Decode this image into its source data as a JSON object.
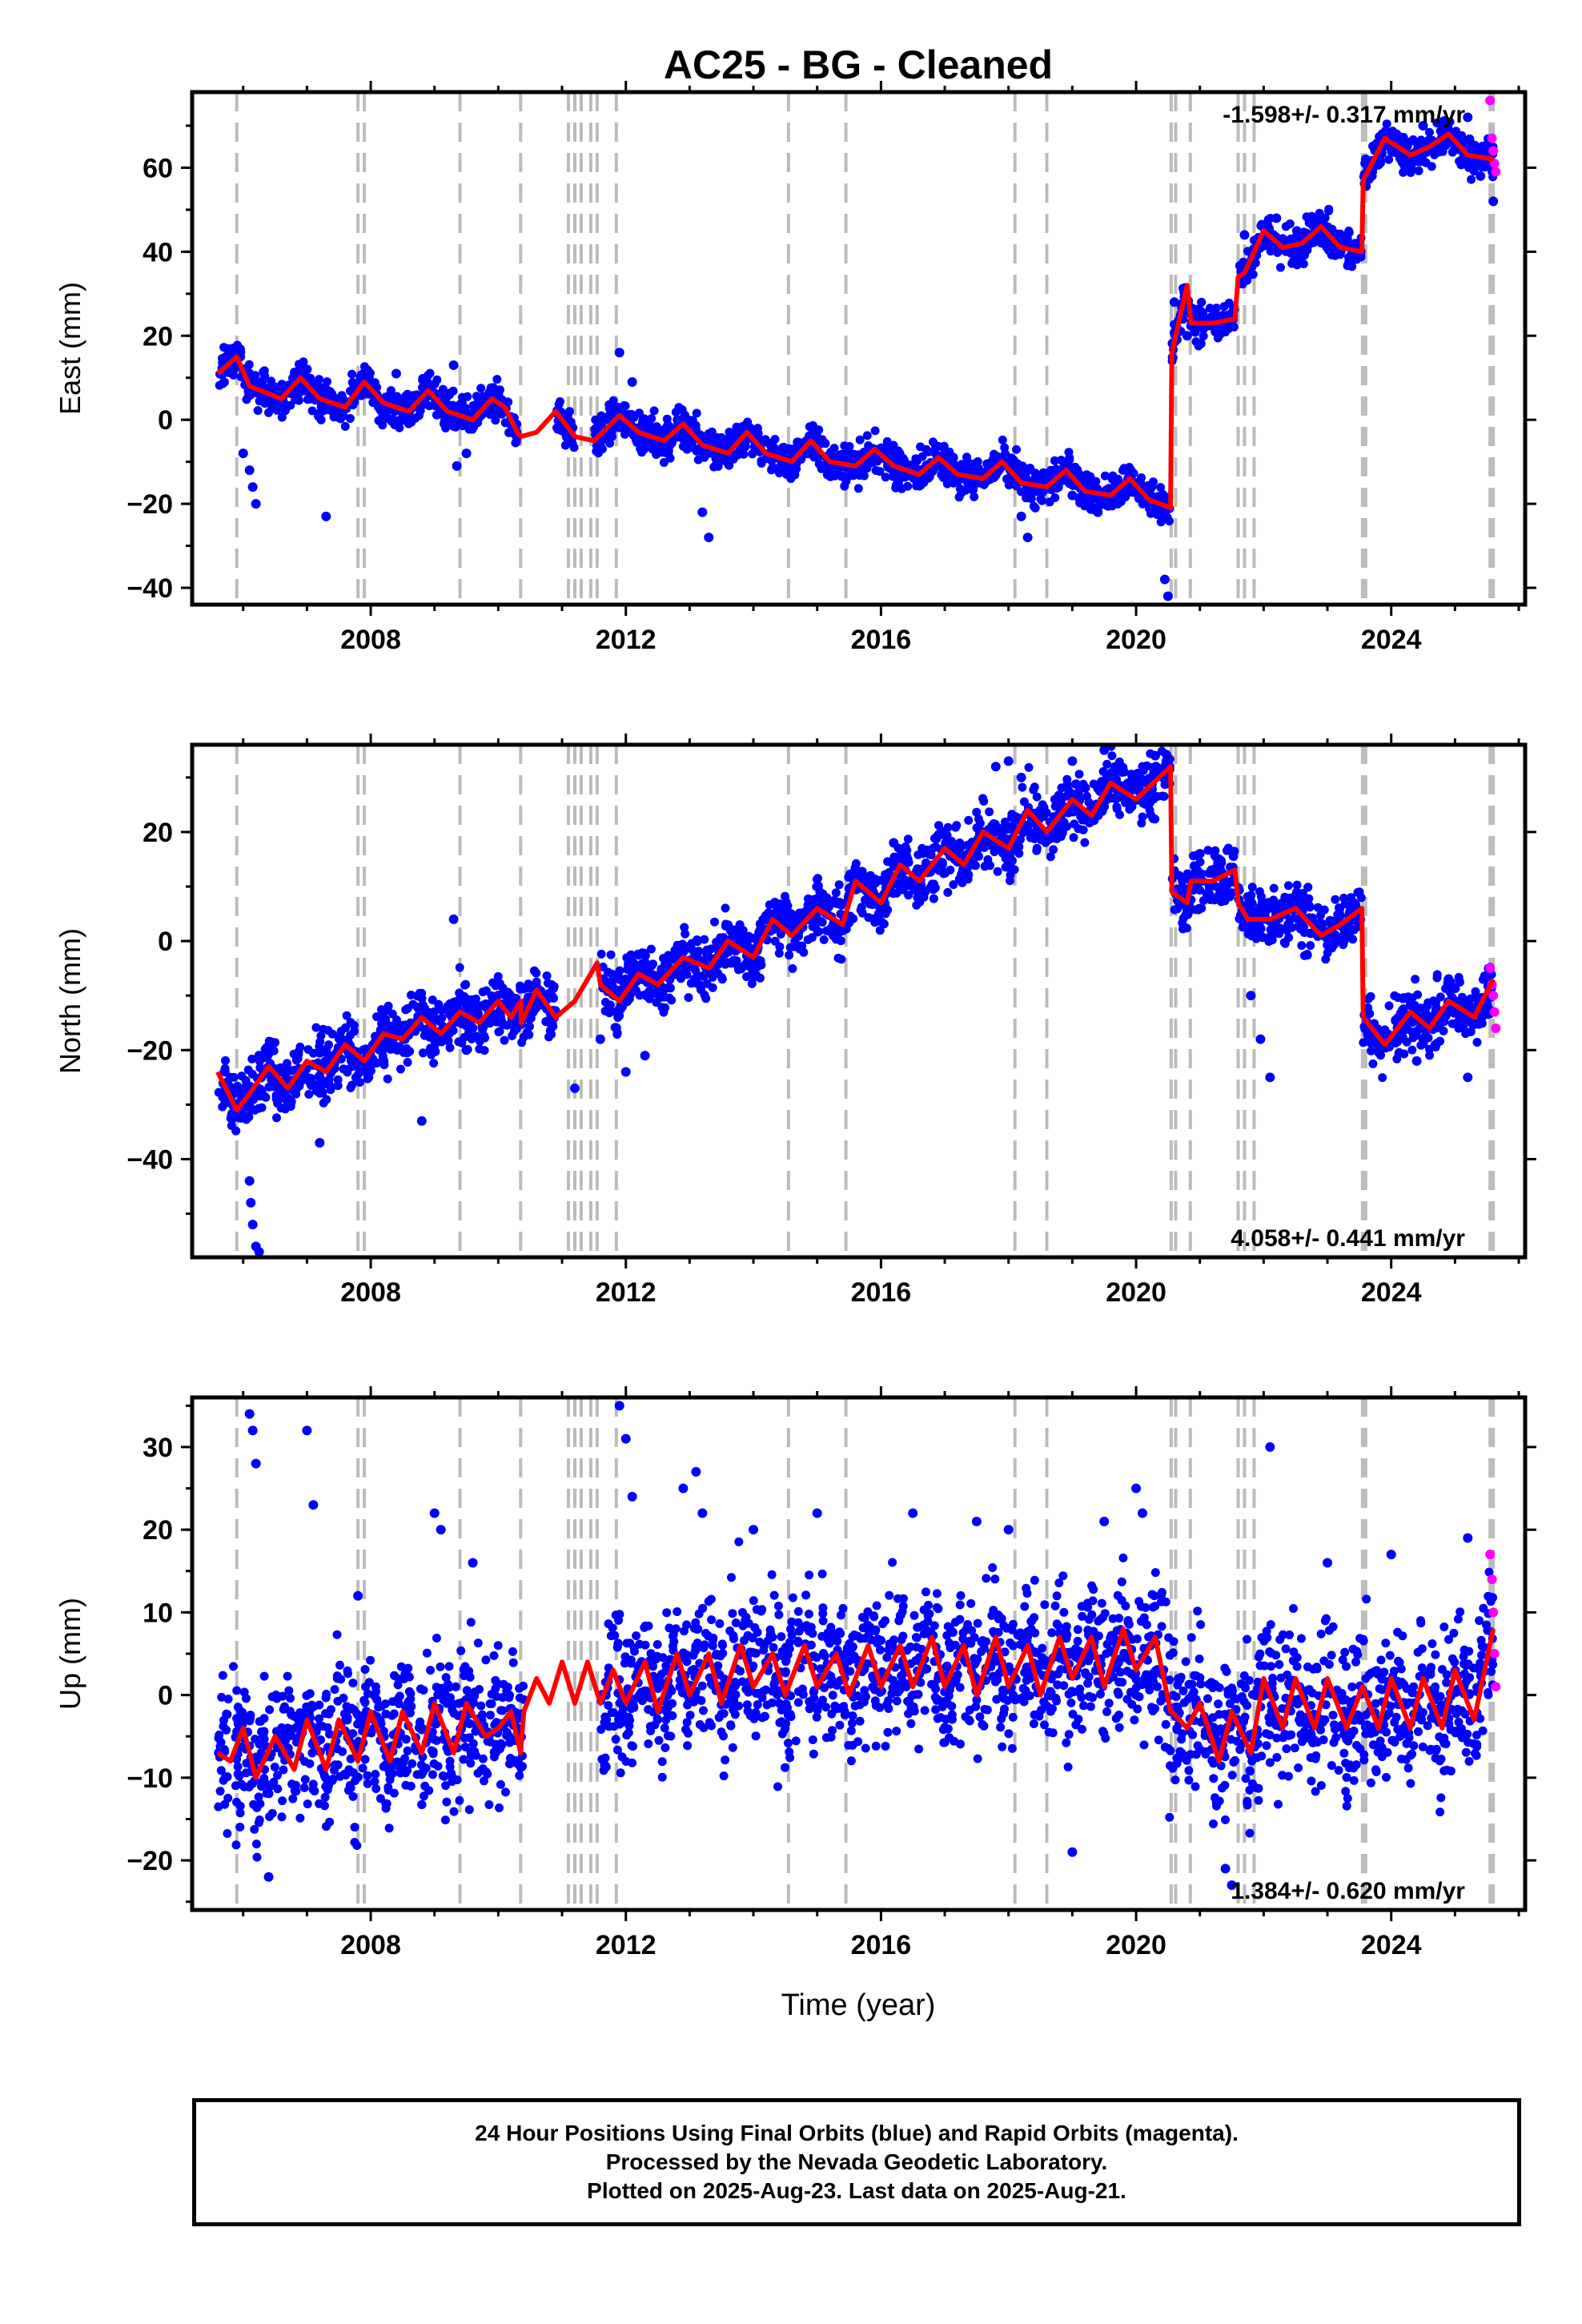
{
  "chart_data": {
    "type": "scatter",
    "title": "AC25  - BG - Cleaned",
    "xlabel": "Time (year)",
    "x_ticks": [
      "2008",
      "2012",
      "2016",
      "2020",
      "2024"
    ],
    "xlim": [
      2005.2,
      2026.1
    ],
    "vertical_dashed_lines_at_years": [
      2005.9,
      2007.8,
      2007.9,
      2009.4,
      2010.35,
      2011.1,
      2011.2,
      2011.3,
      2011.45,
      2011.55,
      2011.85,
      2014.55,
      2015.45,
      2018.1,
      2018.6,
      2020.55,
      2020.62,
      2020.85,
      2021.6,
      2021.7,
      2021.85,
      2023.55,
      2023.6,
      2025.55,
      2025.6
    ],
    "colors": {
      "final_orbits": "#0000ff",
      "rapid_orbits": "#ff00ff",
      "model_fit": "#ff0000",
      "event_lines": "#bbbbbb"
    },
    "panels": [
      {
        "ylabel": "East (mm)",
        "ylim": [
          -44,
          78
        ],
        "y_ticks": [
          "-40",
          "-20",
          "0",
          "20",
          "40",
          "60"
        ],
        "rate_label": "-1.598+/- 0.317 mm/yr",
        "rate_position": "top-right",
        "model_series": {
          "name": "model fit",
          "x": [
            2005.6,
            2005.9,
            2006.1,
            2006.6,
            2006.9,
            2007.2,
            2007.6,
            2007.9,
            2008.2,
            2008.6,
            2008.9,
            2009.2,
            2009.6,
            2009.9,
            2010.1,
            2010.3,
            2010.35,
            2010.6,
            2010.9,
            2011.2,
            2011.5,
            2011.9,
            2012.2,
            2012.6,
            2012.9,
            2013.2,
            2013.6,
            2013.9,
            2014.2,
            2014.6,
            2014.9,
            2015.2,
            2015.6,
            2015.9,
            2016.2,
            2016.6,
            2016.9,
            2017.2,
            2017.6,
            2017.9,
            2018.2,
            2018.6,
            2018.9,
            2019.2,
            2019.6,
            2019.9,
            2020.2,
            2020.54,
            2020.56,
            2020.8,
            2020.86,
            2021.2,
            2021.55,
            2021.6,
            2021.7,
            2022.0,
            2022.3,
            2022.6,
            2022.9,
            2023.2,
            2023.54,
            2023.56,
            2023.9,
            2024.3,
            2024.6,
            2024.9,
            2025.2,
            2025.6
          ],
          "values": [
            11,
            15,
            8,
            5,
            10,
            5,
            3,
            9,
            4,
            2,
            7,
            2,
            0,
            5,
            3,
            -3,
            -4,
            -3,
            2,
            -4,
            -5,
            1,
            -3,
            -5,
            -1,
            -6,
            -8,
            -3,
            -8,
            -10,
            -5,
            -10,
            -11,
            -7,
            -11,
            -13,
            -9,
            -13,
            -14,
            -10,
            -15,
            -16,
            -12,
            -17,
            -18,
            -14,
            -19,
            -21,
            16,
            32,
            23,
            23,
            24,
            34,
            35,
            45,
            41,
            42,
            46,
            41,
            40,
            57,
            67,
            63,
            65,
            68,
            63,
            62
          ]
        },
        "scatter_series": {
          "name": "final orbits",
          "x": [
            2005.7,
            2006.0,
            2006.1,
            2006.15,
            2006.2,
            2007.0,
            2007.3,
            2008.4,
            2009.3,
            2009.35,
            2009.5,
            2010.0,
            2011.9,
            2012.1,
            2013.0,
            2013.2,
            2013.3,
            2014.6,
            2018.2,
            2018.3,
            2019.0,
            2019.4,
            2020.45,
            2020.5,
            2020.6,
            2020.8,
            2021.7,
            2022.2,
            2023.6,
            2024.5,
            2025.2,
            2025.4,
            2025.6
          ],
          "values": [
            14,
            -8,
            -12,
            -16,
            -20,
            12,
            -23,
            11,
            13,
            -11,
            -8,
            6,
            16,
            9,
            -6,
            -22,
            -28,
            -10,
            -23,
            -28,
            -18,
            -22,
            -38,
            -42,
            28,
            20,
            44,
            48,
            62,
            70,
            72,
            58,
            52
          ]
        },
        "rapid_series": {
          "name": "rapid orbits",
          "x": [
            2025.55,
            2025.58,
            2025.6,
            2025.62,
            2025.64
          ],
          "values": [
            76,
            67,
            64,
            61,
            59
          ]
        }
      },
      {
        "ylabel": "North (mm)",
        "ylim": [
          -58,
          36
        ],
        "y_ticks": [
          "-40",
          "-20",
          "0",
          "20"
        ],
        "rate_label": "4.058+/- 0.441 mm/yr",
        "rate_position": "bottom-right",
        "model_series": {
          "name": "model fit",
          "x": [
            2005.6,
            2005.9,
            2006.1,
            2006.4,
            2006.7,
            2007.0,
            2007.3,
            2007.6,
            2007.9,
            2008.2,
            2008.5,
            2008.8,
            2009.1,
            2009.4,
            2009.7,
            2010.0,
            2010.2,
            2010.35,
            2010.36,
            2010.6,
            2010.9,
            2011.2,
            2011.55,
            2011.6,
            2011.9,
            2012.2,
            2012.5,
            2012.9,
            2013.3,
            2013.6,
            2014.0,
            2014.3,
            2014.6,
            2015.0,
            2015.4,
            2015.6,
            2016.0,
            2016.3,
            2016.6,
            2017.0,
            2017.3,
            2017.6,
            2018.0,
            2018.3,
            2018.6,
            2019.0,
            2019.3,
            2019.6,
            2020.0,
            2020.54,
            2020.56,
            2020.8,
            2020.86,
            2021.2,
            2021.55,
            2021.6,
            2021.75,
            2022.1,
            2022.5,
            2022.9,
            2023.2,
            2023.54,
            2023.56,
            2023.9,
            2024.3,
            2024.6,
            2024.9,
            2025.3,
            2025.6
          ],
          "values": [
            -24,
            -31,
            -28,
            -23,
            -27,
            -22,
            -24,
            -19,
            -22,
            -17,
            -18,
            -14,
            -17,
            -13,
            -15,
            -11,
            -14,
            -11,
            -15,
            -9,
            -14,
            -11,
            -4,
            -8,
            -11,
            -6,
            -8,
            -3,
            -5,
            0,
            -3,
            4,
            1,
            6,
            3,
            11,
            7,
            14,
            11,
            17,
            14,
            20,
            17,
            24,
            20,
            26,
            23,
            29,
            26,
            32,
            9,
            7,
            11,
            11,
            13,
            7,
            4,
            4,
            6,
            1,
            3,
            6,
            -14,
            -19,
            -13,
            -16,
            -11,
            -14,
            -7
          ]
        },
        "scatter_series": {
          "name": "final orbits",
          "x": [
            2006.1,
            2006.12,
            2006.15,
            2006.2,
            2006.25,
            2007.2,
            2008.8,
            2009.3,
            2009.5,
            2011.2,
            2011.6,
            2012.0,
            2012.3,
            2016.2,
            2017.8,
            2018.0,
            2018.2,
            2018.5,
            2019.0,
            2019.5,
            2020.3,
            2021.0,
            2021.3,
            2021.8,
            2021.95,
            2022.1,
            2024.4,
            2025.2
          ],
          "values": [
            -44,
            -48,
            -52,
            -56,
            -57,
            -37,
            -33,
            4,
            -20,
            -27,
            -18,
            -24,
            -21,
            18,
            32,
            33,
            30,
            24,
            33,
            35,
            34,
            16,
            15,
            -10,
            -18,
            -25,
            -22,
            -25
          ]
        },
        "rapid_series": {
          "name": "rapid orbits",
          "x": [
            2025.55,
            2025.58,
            2025.6,
            2025.62,
            2025.64
          ],
          "values": [
            -5,
            -8,
            -10,
            -13,
            -16
          ]
        }
      },
      {
        "ylabel": "Up (mm)",
        "ylim": [
          -26,
          36
        ],
        "y_ticks": [
          "-20",
          "-10",
          "0",
          "10",
          "20",
          "30"
        ],
        "rate_label": "1.384+/- 0.620 mm/yr",
        "rate_position": "bottom-right",
        "model_series": {
          "name": "model fit",
          "x": [
            2005.6,
            2005.8,
            2006.0,
            2006.2,
            2006.5,
            2006.8,
            2007.0,
            2007.3,
            2007.5,
            2007.8,
            2008.0,
            2008.3,
            2008.5,
            2008.8,
            2009.0,
            2009.3,
            2009.5,
            2009.8,
            2010.0,
            2010.2,
            2010.35,
            2010.4,
            2010.6,
            2010.8,
            2011.0,
            2011.2,
            2011.4,
            2011.6,
            2011.8,
            2012.0,
            2012.3,
            2012.5,
            2012.8,
            2013.0,
            2013.3,
            2013.5,
            2013.8,
            2014.0,
            2014.3,
            2014.5,
            2014.8,
            2015.0,
            2015.3,
            2015.5,
            2015.8,
            2016.0,
            2016.3,
            2016.5,
            2016.8,
            2017.0,
            2017.3,
            2017.5,
            2017.8,
            2018.0,
            2018.3,
            2018.5,
            2018.8,
            2019.0,
            2019.3,
            2019.5,
            2019.8,
            2020.0,
            2020.3,
            2020.54,
            2020.56,
            2020.8,
            2021.0,
            2021.3,
            2021.5,
            2021.8,
            2022.0,
            2022.3,
            2022.5,
            2022.8,
            2023.0,
            2023.3,
            2023.55,
            2023.8,
            2024.0,
            2024.3,
            2024.5,
            2024.8,
            2025.0,
            2025.3,
            2025.6
          ],
          "values": [
            -7,
            -8,
            -4,
            -10,
            -5,
            -9,
            -3,
            -9,
            -3,
            -8,
            -2,
            -8,
            -2,
            -7,
            -1,
            -7,
            -1,
            -5,
            -4,
            -2,
            -7,
            -2,
            2,
            -1,
            4,
            -1,
            4,
            -1,
            3,
            -1,
            4,
            -2,
            5,
            0,
            5,
            -1,
            6,
            1,
            5,
            0,
            6,
            1,
            5,
            0,
            6,
            1,
            6,
            1,
            7,
            1,
            6,
            0,
            7,
            1,
            6,
            0,
            7,
            2,
            7,
            1,
            8,
            3,
            7,
            -2,
            -2,
            -4,
            -1,
            -8,
            -2,
            -7,
            2,
            -4,
            2,
            -4,
            2,
            -4,
            1,
            -4,
            2,
            -4,
            2,
            -4,
            3,
            -3,
            8
          ]
        },
        "scatter_series": {
          "name": "final orbits",
          "x": [
            2006.1,
            2006.15,
            2006.2,
            2006.4,
            2007.0,
            2007.1,
            2007.8,
            2009.0,
            2009.1,
            2009.6,
            2011.9,
            2012.0,
            2012.1,
            2012.9,
            2013.1,
            2013.2,
            2014.0,
            2015.0,
            2016.5,
            2017.5,
            2018.0,
            2019.0,
            2019.5,
            2020.0,
            2020.1,
            2021.4,
            2021.5,
            2022.1,
            2023.0,
            2024.0,
            2025.2
          ],
          "values": [
            34,
            32,
            28,
            -22,
            32,
            23,
            12,
            22,
            20,
            16,
            35,
            31,
            24,
            25,
            27,
            22,
            20,
            22,
            22,
            21,
            20,
            -19,
            21,
            25,
            22,
            -21,
            -23,
            30,
            16,
            17,
            19
          ]
        },
        "rapid_series": {
          "name": "rapid orbits",
          "x": [
            2025.55,
            2025.58,
            2025.6,
            2025.62,
            2025.64
          ],
          "values": [
            17,
            14,
            10,
            5,
            1
          ]
        }
      }
    ],
    "caption_lines": [
      "24 Hour Positions Using Final Orbits (blue) and Rapid Orbits (magenta).",
      "Processed by the Nevada Geodetic Laboratory.",
      "Plotted on 2025-Aug-23. Last data on 2025-Aug-21."
    ]
  }
}
